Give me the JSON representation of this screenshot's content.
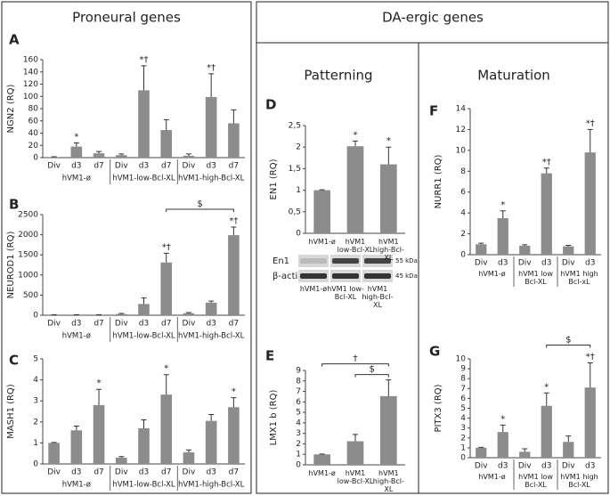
{
  "headers": {
    "left": "Proneural genes",
    "right": "DA-ergic genes",
    "patterning": "Patterning",
    "maturation": "Maturation"
  },
  "chart_data": [
    {
      "type": "bar",
      "label": "A",
      "ylabel": "NGN2 (RQ)",
      "color": "#8c8c8c",
      "categories": [
        "Div",
        "d3",
        "d7",
        "Div",
        "d3",
        "d7",
        "Div",
        "d3",
        "d7"
      ],
      "groups": [
        "hVM1-ø",
        "hVM1-low-Bcl-XL",
        "hVM1-high-Bcl-XL"
      ],
      "values": [
        1,
        18,
        7,
        4,
        110,
        45,
        3,
        99,
        56
      ],
      "errors": [
        0.5,
        6,
        3,
        2,
        40,
        17,
        3,
        38,
        22
      ],
      "significance": [
        null,
        "*",
        null,
        null,
        "*†",
        null,
        null,
        "*†",
        null
      ],
      "ylim": [
        0,
        160
      ],
      "yticks": [
        0,
        20,
        40,
        60,
        80,
        100,
        120,
        140,
        160
      ]
    },
    {
      "type": "bar",
      "label": "B",
      "ylabel": "NEUROD1 (RQ)",
      "color": "#8c8c8c",
      "categories": [
        "Div",
        "d3",
        "d7",
        "Div",
        "d3",
        "d7",
        "Div",
        "d3",
        "d7"
      ],
      "groups": [
        "hVM1-ø",
        "hVM1-low-Bcl-XL",
        "hVM1-high-Bcl-XL"
      ],
      "values": [
        5,
        5,
        5,
        30,
        280,
        1310,
        50,
        310,
        1990
      ],
      "errors": [
        5,
        5,
        5,
        15,
        150,
        230,
        15,
        40,
        200
      ],
      "significance": [
        null,
        null,
        null,
        null,
        null,
        "*†",
        null,
        null,
        "*†"
      ],
      "brackets": [
        {
          "text": "$",
          "bars": [
            5,
            8
          ]
        }
      ],
      "ylim": [
        0,
        2500
      ],
      "yticks": [
        0,
        500,
        1000,
        1500,
        2000,
        2500
      ]
    },
    {
      "type": "bar",
      "label": "C",
      "ylabel": "MASH1 (RQ)",
      "color": "#8c8c8c",
      "categories": [
        "Div",
        "d3",
        "d7",
        "Div",
        "d3",
        "d7",
        "Div",
        "d3",
        "d7"
      ],
      "groups": [
        "hVM1-ø",
        "hVM1-low-Bcl-XL",
        "hVM1-high-Bcl-XL"
      ],
      "values": [
        1,
        1.6,
        2.8,
        0.3,
        1.7,
        3.3,
        0.55,
        2.05,
        2.7
      ],
      "errors": [
        0.02,
        0.2,
        0.75,
        0.05,
        0.4,
        0.95,
        0.12,
        0.3,
        0.45
      ],
      "significance": [
        null,
        null,
        "*",
        null,
        null,
        "*",
        null,
        null,
        "*"
      ],
      "ylim": [
        0,
        5
      ],
      "yticks": [
        0,
        1,
        2,
        3,
        4,
        5
      ]
    },
    {
      "type": "bar",
      "label": "D",
      "ylabel": "EN1 (RQ)",
      "color": "#8c8c8c",
      "categories": [
        "hVM1-ø",
        "hVM1 low-Bcl-XL",
        "hVM1 high-Bcl-XL"
      ],
      "values": [
        1,
        2.02,
        1.6
      ],
      "errors": [
        0.01,
        0.12,
        0.4
      ],
      "significance": [
        null,
        "*",
        "*"
      ],
      "ylim": [
        0,
        2.5
      ],
      "yticks": [
        0,
        {
          "value": 0.5,
          "label": "0,5"
        },
        1,
        {
          "value": 1.5,
          "label": "1,5"
        },
        2,
        {
          "value": 2.5,
          "label": "2,5"
        }
      ],
      "blot": {
        "rows": [
          "En1",
          "β-actin"
        ],
        "sizes": [
          "55 kDa",
          "45 kDa"
        ],
        "lanes": [
          "hVM1-ø",
          "hVM1 low-Bcl-XL",
          "hVM1 high-Bcl-XL"
        ]
      }
    },
    {
      "type": "bar",
      "label": "E",
      "ylabel": "LMX1 b (RQ)",
      "color": "#8c8c8c",
      "categories": [
        "hVM1-ø",
        "hVM1 low-Bcl-XL",
        "hVM1 high-Bcl-XL"
      ],
      "values": [
        1,
        2.25,
        6.55
      ],
      "errors": [
        0.03,
        0.65,
        1.55
      ],
      "significance": [
        null,
        null,
        null
      ],
      "brackets": [
        {
          "text": "†",
          "bars": [
            0,
            2
          ]
        },
        {
          "text": "$",
          "bars": [
            1,
            2
          ]
        }
      ],
      "ylim": [
        0,
        9
      ],
      "yticks": [
        0,
        1,
        2,
        3,
        4,
        5,
        6,
        7,
        8,
        9
      ]
    },
    {
      "type": "bar",
      "label": "F",
      "ylabel": "NURR1 (RQ)",
      "color": "#8c8c8c",
      "categories": [
        "Div",
        "d3",
        "Div",
        "d3",
        "Div",
        "d3"
      ],
      "groups": [
        "hVM1-ø",
        "hVM1 low Bcl-XL",
        "hVM1 high Bcl-xL"
      ],
      "values": [
        1,
        3.5,
        0.85,
        7.8,
        0.8,
        9.8
      ],
      "errors": [
        0.1,
        0.7,
        0.1,
        0.5,
        0.1,
        2.2
      ],
      "significance": [
        null,
        "*",
        null,
        "*†",
        null,
        "*†"
      ],
      "ylim": [
        0,
        14
      ],
      "yticks": [
        0,
        2,
        4,
        6,
        8,
        10,
        12,
        14
      ]
    },
    {
      "type": "bar",
      "label": "G",
      "ylabel": "PITX3 (RQ)",
      "color": "#8c8c8c",
      "categories": [
        "Div",
        "d3",
        "Div",
        "d3",
        "Div",
        "d3"
      ],
      "groups": [
        "hVM1-ø",
        "hVM1 low Bcl-XL",
        "hVM1 high Bcl-XL"
      ],
      "values": [
        1,
        2.6,
        0.6,
        5.25,
        1.6,
        7.1
      ],
      "errors": [
        0.05,
        0.7,
        0.3,
        1.3,
        0.6,
        2.5
      ],
      "significance": [
        null,
        "*",
        null,
        "*",
        null,
        "*†"
      ],
      "brackets": [
        {
          "text": "$",
          "bars": [
            3,
            5
          ]
        }
      ],
      "ylim": [
        0,
        10
      ],
      "yticks": [
        0,
        1,
        2,
        3,
        4,
        5,
        6,
        7,
        8,
        9,
        10
      ]
    }
  ]
}
